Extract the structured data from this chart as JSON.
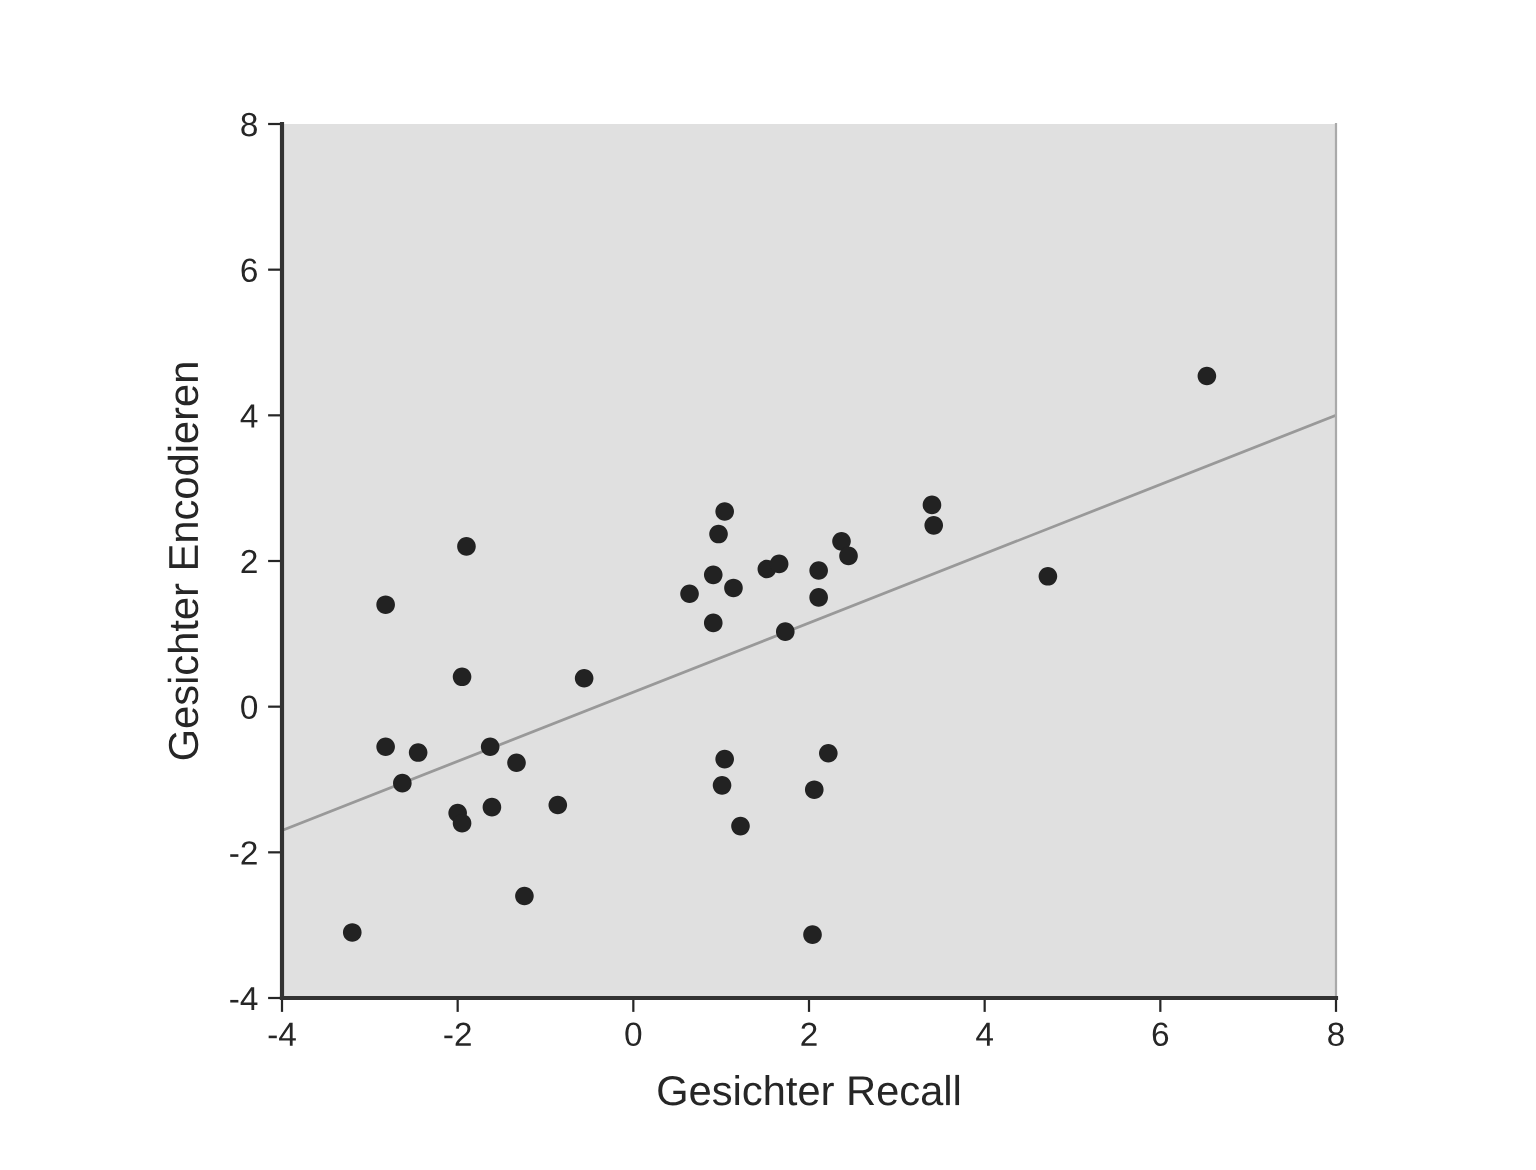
{
  "chart_data": {
    "type": "scatter",
    "xlabel": "Gesichter Recall",
    "ylabel": "Gesichter Encodieren",
    "xlim": [
      -4,
      8
    ],
    "ylim": [
      -4,
      8
    ],
    "xticks": [
      -4,
      -2,
      0,
      2,
      4,
      6,
      8
    ],
    "yticks": [
      -4,
      -2,
      0,
      2,
      4,
      6,
      8
    ],
    "grid": false,
    "marker": "circle",
    "series": [
      {
        "color": "#222222",
        "x": [
          -3.2,
          -2.82,
          -2.82,
          -2.63,
          -2.45,
          -1.9,
          -1.95,
          -2.0,
          -1.95,
          -1.63,
          -1.61,
          -1.33,
          -1.24,
          -0.86,
          -0.56,
          0.64,
          0.91,
          1.04,
          0.97,
          0.91,
          1.14,
          1.52,
          1.66,
          2.11,
          2.11,
          1.73,
          2.37,
          2.45,
          3.4,
          3.42,
          4.72,
          6.53,
          1.04,
          1.01,
          1.22,
          2.22,
          2.06,
          2.04
        ],
        "values": [
          -3.1,
          1.4,
          -0.55,
          -1.05,
          -0.63,
          2.2,
          0.41,
          -1.46,
          -1.6,
          -0.55,
          -1.38,
          -0.77,
          -2.6,
          -1.35,
          0.39,
          1.55,
          1.81,
          2.68,
          2.37,
          1.15,
          1.63,
          1.89,
          1.96,
          1.87,
          1.5,
          1.03,
          2.27,
          2.07,
          2.77,
          2.49,
          1.79,
          4.54,
          -0.72,
          -1.08,
          -1.64,
          -0.64,
          -1.14,
          -3.13
        ]
      },
      {
        "type": "line",
        "color": "#999999",
        "x": [
          -4,
          8
        ],
        "values": [
          -1.7,
          4.0
        ],
        "marker": "none"
      }
    ]
  }
}
